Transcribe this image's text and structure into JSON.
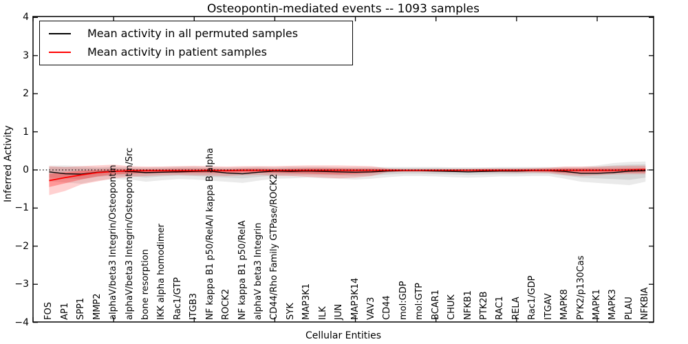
{
  "chart_data": {
    "type": "line",
    "title": "Osteopontin-mediated events -- 1093 samples",
    "xlabel": "Cellular Entities",
    "ylabel": "Inferred Activity",
    "ylim": [
      -4,
      4
    ],
    "xlim": [
      0,
      38.5
    ],
    "grid": false,
    "legend_position": "upper-left",
    "zero_line": {
      "style": "dotted",
      "color": "#000000",
      "value": 0
    },
    "yticks": [
      {
        "label": "4",
        "value": 4
      },
      {
        "label": "3",
        "value": 3
      },
      {
        "label": "2",
        "value": 2
      },
      {
        "label": "1",
        "value": 1
      },
      {
        "label": "0",
        "value": 0
      },
      {
        "label": "−1",
        "value": -1
      },
      {
        "label": "−2",
        "value": -2
      },
      {
        "label": "−3",
        "value": -3
      },
      {
        "label": "−4",
        "value": -4
      }
    ],
    "xtick_marks": [
      0,
      5,
      10,
      15,
      20,
      25,
      30,
      35
    ],
    "categories": [
      "FOS",
      "AP1",
      "SPP1",
      "MMP2",
      "alphaV/beta3 Integrin/Osteopontin",
      "alphaV/beta3 Integrin/Osteopontin/Src",
      "bone resorption",
      "IKK alpha homodimer",
      "Rac1/GTP",
      "ITGB3",
      "NF kappa B1 p50/RelA/I kappa B alpha",
      "ROCK2",
      "NF kappa B1 p50/RelA",
      "alphaV beta3 Integrin",
      "CD44/Rho Family GTPase/ROCK2",
      "SYK",
      "MAP3K1",
      "ILK",
      "JUN",
      "MAP3K14",
      "VAV3",
      "CD44",
      "mol:GDP",
      "mol:GTP",
      "BCAR1",
      "CHUK",
      "NFKB1",
      "PTK2B",
      "RAC1",
      "RELA",
      "Rac1/GDP",
      "ITGAV",
      "MAPK8",
      "PYK2/p130Cas",
      "MAPK1",
      "MAPK3",
      "PLAU",
      "NFKBIA"
    ],
    "series": [
      {
        "name": "Mean activity in all permuted samples",
        "color": "#000000",
        "width": 1.4,
        "values": [
          -0.05,
          -0.1,
          -0.11,
          -0.06,
          -0.03,
          -0.04,
          -0.07,
          -0.06,
          -0.05,
          -0.04,
          -0.03,
          -0.08,
          -0.1,
          -0.06,
          -0.03,
          -0.04,
          -0.03,
          -0.04,
          -0.05,
          -0.06,
          -0.05,
          -0.03,
          -0.02,
          -0.02,
          -0.03,
          -0.04,
          -0.05,
          -0.04,
          -0.03,
          -0.03,
          -0.02,
          -0.02,
          -0.04,
          -0.09,
          -0.09,
          -0.07,
          -0.03,
          -0.02
        ]
      },
      {
        "name": "Mean activity in patient samples",
        "color": "#ff0000",
        "width": 1.8,
        "values": [
          -0.28,
          -0.2,
          -0.13,
          -0.07,
          -0.04,
          -0.02,
          -0.02,
          -0.02,
          -0.02,
          -0.02,
          -0.01,
          -0.02,
          -0.01,
          -0.01,
          -0.01,
          -0.01,
          -0.01,
          -0.01,
          -0.01,
          -0.01,
          -0.01,
          -0.01,
          -0.01,
          -0.01,
          -0.01,
          -0.01,
          -0.01,
          -0.01,
          -0.01,
          -0.01,
          -0.01,
          -0.01,
          -0.01,
          -0.01,
          -0.01,
          -0.01,
          0.0,
          0.01
        ]
      }
    ],
    "bands": [
      {
        "name": "permuted-samples-outer-band",
        "color": "#888888",
        "opacity": 0.18,
        "lo": [
          -0.3,
          -0.33,
          -0.36,
          -0.28,
          -0.24,
          -0.25,
          -0.31,
          -0.27,
          -0.24,
          -0.25,
          -0.28,
          -0.31,
          -0.34,
          -0.28,
          -0.23,
          -0.22,
          -0.2,
          -0.22,
          -0.23,
          -0.25,
          -0.23,
          -0.19,
          -0.16,
          -0.16,
          -0.17,
          -0.19,
          -0.2,
          -0.19,
          -0.17,
          -0.17,
          -0.16,
          -0.16,
          -0.23,
          -0.31,
          -0.34,
          -0.37,
          -0.4,
          -0.31
        ],
        "hi": [
          0.11,
          0.12,
          0.1,
          0.08,
          0.09,
          0.08,
          0.07,
          0.08,
          0.09,
          0.09,
          0.08,
          0.07,
          0.08,
          0.09,
          0.08,
          0.09,
          0.09,
          0.09,
          0.08,
          0.08,
          0.08,
          0.08,
          0.08,
          0.08,
          0.08,
          0.07,
          0.07,
          0.07,
          0.08,
          0.08,
          0.08,
          0.08,
          0.08,
          0.08,
          0.12,
          0.18,
          0.21,
          0.22
        ]
      },
      {
        "name": "permuted-samples-inner-band",
        "color": "#888888",
        "opacity": 0.22,
        "lo": [
          -0.2,
          -0.22,
          -0.24,
          -0.18,
          -0.15,
          -0.16,
          -0.2,
          -0.17,
          -0.15,
          -0.16,
          -0.18,
          -0.2,
          -0.22,
          -0.18,
          -0.15,
          -0.14,
          -0.13,
          -0.14,
          -0.15,
          -0.16,
          -0.15,
          -0.12,
          -0.1,
          -0.1,
          -0.11,
          -0.12,
          -0.13,
          -0.12,
          -0.11,
          -0.11,
          -0.1,
          -0.1,
          -0.15,
          -0.2,
          -0.22,
          -0.24,
          -0.26,
          -0.2
        ],
        "hi": [
          0.07,
          0.08,
          0.06,
          0.05,
          0.06,
          0.05,
          0.04,
          0.05,
          0.06,
          0.06,
          0.05,
          0.04,
          0.05,
          0.06,
          0.05,
          0.06,
          0.06,
          0.06,
          0.05,
          0.05,
          0.05,
          0.05,
          0.05,
          0.05,
          0.05,
          0.04,
          0.04,
          0.04,
          0.05,
          0.05,
          0.05,
          0.05,
          0.05,
          0.05,
          0.08,
          0.12,
          0.14,
          0.15
        ]
      },
      {
        "name": "patient-samples-outer-band",
        "color": "#ff0000",
        "opacity": 0.18,
        "lo": [
          -0.66,
          -0.55,
          -0.38,
          -0.3,
          -0.22,
          -0.18,
          -0.16,
          -0.14,
          -0.13,
          -0.14,
          -0.15,
          -0.16,
          -0.14,
          -0.13,
          -0.15,
          -0.16,
          -0.18,
          -0.2,
          -0.22,
          -0.2,
          -0.16,
          -0.06,
          -0.05,
          -0.05,
          -0.05,
          -0.05,
          -0.05,
          -0.06,
          -0.06,
          -0.07,
          -0.07,
          -0.08,
          -0.13,
          -0.16,
          -0.14,
          -0.12,
          -0.11,
          -0.11
        ],
        "hi": [
          0.1,
          0.08,
          0.1,
          0.12,
          0.14,
          0.1,
          0.09,
          0.09,
          0.1,
          0.11,
          0.1,
          0.09,
          0.1,
          0.1,
          0.1,
          0.11,
          0.12,
          0.12,
          0.12,
          0.11,
          0.1,
          0.04,
          0.03,
          0.03,
          0.03,
          0.03,
          0.03,
          0.04,
          0.04,
          0.04,
          0.05,
          0.06,
          0.09,
          0.09,
          0.09,
          0.1,
          0.11,
          0.11
        ]
      },
      {
        "name": "patient-samples-inner-band",
        "color": "#ff0000",
        "opacity": 0.28,
        "lo": [
          -0.45,
          -0.35,
          -0.25,
          -0.17,
          -0.12,
          -0.1,
          -0.09,
          -0.08,
          -0.08,
          -0.08,
          -0.08,
          -0.09,
          -0.07,
          -0.07,
          -0.08,
          -0.09,
          -0.1,
          -0.11,
          -0.12,
          -0.11,
          -0.08,
          -0.04,
          -0.03,
          -0.03,
          -0.03,
          -0.03,
          -0.03,
          -0.04,
          -0.04,
          -0.04,
          -0.04,
          -0.05,
          -0.08,
          -0.1,
          -0.09,
          -0.08,
          -0.07,
          -0.07
        ],
        "hi": [
          -0.1,
          -0.06,
          -0.02,
          0.0,
          0.02,
          0.02,
          0.02,
          0.02,
          0.03,
          0.03,
          0.03,
          0.02,
          0.03,
          0.03,
          0.02,
          0.03,
          0.04,
          0.04,
          0.04,
          0.03,
          0.03,
          0.02,
          0.01,
          0.01,
          0.01,
          0.01,
          0.01,
          0.02,
          0.02,
          0.02,
          0.02,
          0.03,
          0.04,
          0.04,
          0.04,
          0.04,
          0.05,
          0.05
        ]
      }
    ]
  }
}
